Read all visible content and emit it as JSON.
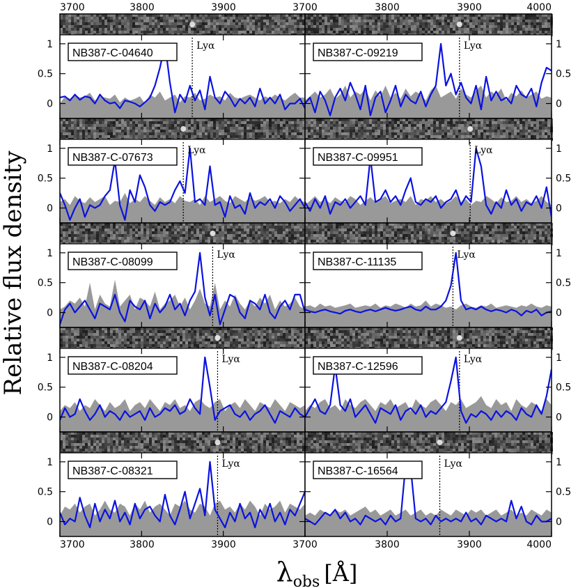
{
  "chart_data": {
    "type": "line",
    "x_axis": {
      "label_main": "λ",
      "label_sub": "obs",
      "label_unit": "[Å]",
      "range": [
        3700,
        4000
      ],
      "ticks": [
        3700,
        3800,
        3900,
        4000
      ],
      "tick_labels_bottom": [
        "3700",
        "3800",
        "3900",
        "3700",
        "3800",
        "3900",
        "4000"
      ],
      "tick_labels_top": [
        "3700",
        "3800",
        "3900",
        "3700",
        "3800",
        "3900",
        "4000"
      ]
    },
    "y_axis": {
      "label": "Relative flux density",
      "range": [
        -0.25,
        1.15
      ],
      "ticks": [
        0,
        0.5,
        1
      ],
      "tick_labels": [
        "0",
        "0.5",
        "1"
      ]
    },
    "line_label": "Lyα",
    "colors": {
      "spectrum": "#0a12e0",
      "noise": "#999999",
      "marker": "#000000"
    },
    "panels": [
      {
        "name": "NB387-C-04640",
        "lya": 3862,
        "spectrum": [
          0.1,
          0.12,
          0.05,
          0.15,
          0.06,
          0.12,
          0.1,
          0.0,
          0.15,
          0.05,
          0.0,
          0.02,
          -0.08,
          0.05,
          0.03,
          0.0,
          -0.05,
          0.02,
          0.1,
          0.3,
          0.6,
          1.0,
          0.35,
          -0.15,
          0.15,
          0.02,
          0.3,
          0.05,
          0.22,
          -0.1,
          0.45,
          0.1,
          0.0,
          0.2,
          0.1,
          -0.05,
          0.08,
          0.0,
          0.1,
          -0.05,
          0.25,
          0.0,
          0.1,
          0.0,
          0.15,
          -0.1,
          0.0,
          0.0,
          0.08,
          -0.08
        ],
        "noise": [
          0.0,
          0.12,
          0.08,
          0.15,
          0.1,
          0.12,
          0.18,
          0.05,
          0.12,
          0.1,
          0.08,
          0.15,
          0.02,
          0.1,
          0.05,
          0.08,
          0.12,
          0.0,
          0.15,
          0.1,
          0.2,
          0.05,
          0.1,
          0.15,
          0.02,
          0.12,
          0.1,
          0.18,
          0.05,
          0.08,
          0.15,
          0.1,
          0.12,
          0.05,
          0.18,
          0.1,
          0.08,
          0.12,
          0.15,
          0.1,
          0.05,
          0.12,
          0.08,
          0.15,
          0.1,
          0.05,
          0.12,
          0.18,
          0.1,
          0.1
        ]
      },
      {
        "name": "NB387-C-09219",
        "lya": 3888,
        "spectrum": [
          0.0,
          0.1,
          -0.15,
          0.2,
          0.05,
          -0.2,
          0.1,
          0.25,
          0.05,
          0.35,
          0.15,
          -0.1,
          0.3,
          -0.2,
          0.1,
          0.2,
          -0.15,
          0.05,
          0.3,
          -0.05,
          0.15,
          0.05,
          0.0,
          0.2,
          -0.05,
          0.15,
          0.3,
          1.0,
          0.3,
          0.5,
          0.15,
          0.35,
          0.1,
          0.0,
          0.3,
          -0.1,
          0.45,
          0.05,
          0.2,
          0.05,
          0.1,
          0.0,
          0.3,
          0.15,
          0.1,
          0.25,
          -0.05,
          0.35,
          0.6,
          0.55
        ],
        "noise": [
          0.05,
          0.12,
          0.2,
          0.1,
          0.15,
          0.25,
          0.08,
          0.15,
          0.3,
          0.1,
          0.2,
          0.15,
          0.25,
          0.05,
          0.22,
          0.12,
          0.3,
          0.1,
          0.18,
          0.08,
          0.25,
          0.12,
          0.2,
          0.15,
          0.05,
          0.22,
          0.3,
          0.1,
          0.15,
          0.2,
          0.08,
          0.25,
          0.15,
          0.1,
          0.22,
          0.3,
          0.1,
          0.2,
          0.15,
          0.25,
          0.05,
          0.18,
          0.12,
          0.22,
          0.1,
          0.15,
          0.2,
          0.08,
          0.12,
          0.1
        ]
      },
      {
        "name": "NB387-C-07673",
        "lya": 3851,
        "spectrum": [
          0.25,
          0.05,
          -0.2,
          0.0,
          0.15,
          -0.15,
          0.05,
          0.0,
          0.05,
          0.2,
          0.3,
          0.8,
          0.05,
          -0.2,
          0.3,
          0.1,
          0.55,
          0.35,
          0.05,
          -0.05,
          0.1,
          0.05,
          0.1,
          0.3,
          0.45,
          0.25,
          1.0,
          0.1,
          0.15,
          0.05,
          0.7,
          0.05,
          0.1,
          -0.15,
          0.2,
          0.0,
          0.05,
          -0.1,
          0.25,
          0.0,
          0.1,
          0.05,
          0.15,
          0.0,
          0.2,
          0.1,
          -0.05,
          0.05,
          0.15,
          0.0
        ],
        "noise": [
          0.1,
          0.15,
          0.05,
          0.2,
          0.12,
          0.08,
          0.18,
          0.1,
          0.15,
          0.2,
          0.05,
          0.12,
          0.1,
          0.25,
          0.08,
          0.15,
          0.1,
          0.2,
          0.12,
          0.05,
          0.18,
          0.1,
          0.15,
          0.08,
          0.2,
          0.12,
          0.1,
          0.15,
          0.05,
          0.2,
          0.1,
          0.15,
          0.2,
          0.12,
          0.08,
          0.2,
          0.15,
          0.1,
          0.18,
          0.12,
          0.15,
          0.2,
          0.1,
          0.12,
          0.08,
          0.15,
          0.1,
          0.2,
          0.12,
          0.1
        ]
      },
      {
        "name": "NB387-C-09951",
        "lya": 3901,
        "spectrum": [
          0.1,
          -0.05,
          0.15,
          0.0,
          0.2,
          -0.1,
          0.1,
          0.05,
          0.15,
          0.0,
          0.1,
          0.2,
          0.05,
          0.85,
          0.1,
          0.15,
          0.3,
          0.1,
          0.2,
          0.05,
          0.3,
          0.5,
          0.1,
          0.05,
          0.15,
          0.1,
          0.2,
          0.0,
          0.1,
          0.15,
          0.3,
          0.05,
          0.2,
          0.1,
          1.0,
          0.7,
          0.05,
          -0.1,
          0.1,
          0.0,
          0.3,
          0.05,
          0.15,
          -0.05,
          0.1,
          0.05,
          0.2,
          0.0,
          0.35,
          -0.15
        ],
        "noise": [
          0.05,
          0.12,
          0.2,
          0.1,
          0.15,
          0.08,
          0.18,
          0.12,
          0.1,
          0.2,
          0.15,
          0.05,
          0.12,
          0.18,
          0.1,
          0.15,
          0.2,
          0.08,
          0.12,
          0.15,
          0.1,
          0.2,
          0.05,
          0.15,
          0.12,
          0.2,
          0.1,
          0.15,
          0.08,
          0.12,
          0.2,
          0.1,
          0.15,
          0.05,
          0.12,
          0.1,
          0.2,
          0.15,
          0.08,
          0.18,
          0.1,
          0.12,
          0.2,
          0.1,
          0.15,
          0.08,
          0.12,
          0.2,
          0.1,
          0.05
        ]
      },
      {
        "name": "NB387-C-08099",
        "lya": 3887,
        "spectrum": [
          -0.2,
          0.05,
          0.15,
          0.0,
          0.1,
          0.2,
          0.05,
          -0.1,
          0.15,
          0.1,
          0.05,
          0.3,
          0.0,
          -0.15,
          0.2,
          0.1,
          0.05,
          0.2,
          -0.1,
          0.15,
          0.0,
          0.1,
          0.3,
          0.05,
          0.15,
          -0.05,
          0.2,
          0.35,
          1.0,
          0.25,
          -0.05,
          0.3,
          -0.2,
          0.05,
          0.3,
          0.25,
          0.0,
          -0.1,
          0.2,
          0.15,
          0.05,
          0.3,
          0.0,
          -0.1,
          0.1,
          0.2,
          0.05,
          0.3,
          0.3,
          0.0
        ],
        "noise": [
          0.05,
          0.1,
          0.2,
          0.15,
          0.25,
          0.1,
          0.5,
          0.05,
          0.3,
          0.15,
          0.1,
          0.55,
          0.1,
          0.2,
          0.3,
          0.05,
          0.25,
          0.2,
          0.1,
          0.35,
          0.05,
          0.15,
          0.2,
          0.3,
          0.1,
          0.25,
          0.05,
          0.2,
          0.4,
          0.15,
          0.1,
          0.5,
          0.05,
          0.2,
          0.1,
          0.3,
          0.15,
          0.05,
          0.2,
          0.1,
          0.25,
          0.15,
          0.3,
          0.05,
          0.2,
          0.1,
          0.15,
          0.25,
          0.1,
          0.05
        ]
      },
      {
        "name": "NB387-C-11135",
        "lya": 3880,
        "spectrum": [
          0.05,
          0.02,
          0.0,
          0.03,
          0.05,
          0.02,
          0.0,
          -0.02,
          0.03,
          0.05,
          0.02,
          0.0,
          0.03,
          0.05,
          0.02,
          0.05,
          0.08,
          0.05,
          0.03,
          0.05,
          0.08,
          0.1,
          0.05,
          0.03,
          0.1,
          0.05,
          0.05,
          0.1,
          0.2,
          0.45,
          1.0,
          0.2,
          0.05,
          0.08,
          0.05,
          0.1,
          0.05,
          0.02,
          0.05,
          0.03,
          0.0,
          0.05,
          0.02,
          -0.05,
          0.03,
          0.0,
          0.05,
          -0.05,
          0.0,
          0.02
        ],
        "noise": [
          0.1,
          0.12,
          0.08,
          0.15,
          0.1,
          0.12,
          0.08,
          0.1,
          0.12,
          0.15,
          0.08,
          0.1,
          0.12,
          0.1,
          0.15,
          0.08,
          0.12,
          0.1,
          0.15,
          0.12,
          0.08,
          0.15,
          0.1,
          0.12,
          0.2,
          0.1,
          0.15,
          0.12,
          0.08,
          0.1,
          0.05,
          0.12,
          0.15,
          0.1,
          0.08,
          0.12,
          0.1,
          0.15,
          0.08,
          0.1,
          0.12,
          0.1,
          0.08,
          0.12,
          0.1,
          0.15,
          0.1,
          0.08,
          0.12,
          0.1
        ]
      },
      {
        "name": "NB387-C-08204",
        "lya": 3893,
        "spectrum": [
          -0.05,
          0.15,
          0.0,
          0.05,
          0.3,
          0.1,
          -0.05,
          0.05,
          0.2,
          0.0,
          0.1,
          0.05,
          -0.05,
          0.1,
          0.0,
          0.05,
          0.1,
          -0.05,
          0.15,
          0.0,
          0.05,
          0.15,
          0.1,
          0.2,
          0.05,
          0.1,
          0.3,
          0.15,
          0.05,
          1.0,
          0.5,
          -0.05,
          0.1,
          0.15,
          0.2,
          0.05,
          0.0,
          0.1,
          -0.05,
          0.05,
          0.1,
          0.2,
          0.05,
          -0.1,
          0.1,
          0.05,
          0.0,
          0.15,
          0.05,
          0.0
        ],
        "noise": [
          0.1,
          0.2,
          0.15,
          0.25,
          0.1,
          0.2,
          0.15,
          0.3,
          0.2,
          0.1,
          0.25,
          0.15,
          0.2,
          0.3,
          0.1,
          0.2,
          0.25,
          0.15,
          0.3,
          0.2,
          0.1,
          0.25,
          0.2,
          0.3,
          0.15,
          0.2,
          0.1,
          0.25,
          0.3,
          0.2,
          0.15,
          0.25,
          0.3,
          0.1,
          0.2,
          0.25,
          0.15,
          0.3,
          0.2,
          0.1,
          0.25,
          0.2,
          0.15,
          0.3,
          0.2,
          0.1,
          0.25,
          0.2,
          0.15,
          0.2
        ]
      },
      {
        "name": "NB387-C-12596",
        "lya": 3888,
        "spectrum": [
          0.0,
          0.15,
          0.3,
          0.1,
          0.05,
          0.2,
          0.85,
          0.2,
          0.1,
          0.3,
          0.0,
          0.1,
          0.2,
          0.05,
          -0.1,
          0.15,
          0.1,
          0.05,
          0.2,
          -0.05,
          0.1,
          0.15,
          0.05,
          0.2,
          0.0,
          0.1,
          0.05,
          0.15,
          0.25,
          0.6,
          1.0,
          0.1,
          -0.1,
          0.05,
          0.0,
          0.1,
          0.05,
          -0.05,
          0.1,
          0.0,
          0.1,
          0.05,
          -0.05,
          0.15,
          0.05,
          0.0,
          0.2,
          0.05,
          0.35,
          0.8
        ],
        "noise": [
          0.1,
          0.2,
          0.15,
          0.25,
          0.3,
          0.15,
          0.2,
          0.1,
          0.3,
          0.2,
          0.15,
          0.25,
          0.3,
          0.2,
          0.1,
          0.25,
          0.2,
          0.3,
          0.15,
          0.2,
          0.25,
          0.1,
          0.3,
          0.2,
          0.15,
          0.25,
          0.3,
          0.2,
          0.1,
          0.25,
          0.2,
          0.3,
          0.15,
          0.2,
          0.25,
          0.35,
          0.2,
          0.15,
          0.3,
          0.2,
          0.25,
          0.1,
          0.3,
          0.2,
          0.15,
          0.25,
          0.2,
          0.1,
          0.3,
          0.2
        ]
      },
      {
        "name": "NB387-C-08321",
        "lya": 3893,
        "spectrum": [
          0.15,
          -0.05,
          0.05,
          0.0,
          0.4,
          0.1,
          -0.1,
          0.3,
          0.0,
          0.2,
          0.05,
          0.35,
          0.0,
          0.15,
          -0.05,
          0.3,
          0.05,
          0.2,
          0.25,
          0.1,
          0.0,
          0.45,
          0.1,
          -0.05,
          0.2,
          0.5,
          0.05,
          0.3,
          0.55,
          0.1,
          1.0,
          0.2,
          0.05,
          -0.1,
          0.15,
          0.0,
          0.3,
          0.05,
          0.15,
          -0.1,
          0.2,
          0.05,
          0.3,
          0.0,
          0.15,
          -0.05,
          0.2,
          0.1,
          0.3,
          0.5
        ],
        "noise": [
          0.1,
          0.25,
          0.2,
          0.3,
          0.15,
          0.25,
          0.3,
          0.1,
          0.2,
          0.35,
          0.2,
          0.15,
          0.3,
          0.25,
          0.1,
          0.3,
          0.2,
          0.35,
          0.15,
          0.25,
          0.3,
          0.2,
          0.1,
          0.3,
          0.25,
          0.35,
          0.2,
          0.15,
          0.3,
          0.25,
          0.1,
          0.3,
          0.35,
          0.2,
          0.25,
          0.15,
          0.3,
          0.2,
          0.35,
          0.25,
          0.1,
          0.3,
          0.2,
          0.25,
          0.35,
          0.15,
          0.3,
          0.25,
          0.2,
          0.3
        ]
      },
      {
        "name": "NB387-C-16564",
        "lya": 3864,
        "spectrum": [
          0.05,
          0.0,
          -0.05,
          0.05,
          0.15,
          0.1,
          0.2,
          0.05,
          0.15,
          0.0,
          0.05,
          -0.05,
          0.1,
          0.05,
          0.0,
          0.05,
          -0.05,
          0.1,
          0.0,
          0.05,
          0.95,
          0.9,
          0.05,
          0.0,
          0.05,
          -0.05,
          0.1,
          0.0,
          0.05,
          0.0,
          0.05,
          0.0,
          0.15,
          0.0,
          0.05,
          -0.05,
          0.1,
          0.05,
          0.0,
          0.05,
          0.0,
          0.35,
          0.05,
          0.25,
          0.0,
          -0.05,
          0.1,
          0.0,
          0.0,
          0.05
        ],
        "noise": [
          0.1,
          0.15,
          0.1,
          0.2,
          0.15,
          0.1,
          0.2,
          0.15,
          0.2,
          0.1,
          0.15,
          0.2,
          0.25,
          0.15,
          0.2,
          0.1,
          0.15,
          0.2,
          0.1,
          0.15,
          0.2,
          0.1,
          0.15,
          0.2,
          0.1,
          0.15,
          0.1,
          0.2,
          0.15,
          0.1,
          0.2,
          0.15,
          0.1,
          0.2,
          0.15,
          0.2,
          0.1,
          0.15,
          0.2,
          0.1,
          0.15,
          0.2,
          0.1,
          0.15,
          0.1,
          0.2,
          0.15,
          0.1,
          0.2,
          0.15
        ]
      }
    ]
  }
}
